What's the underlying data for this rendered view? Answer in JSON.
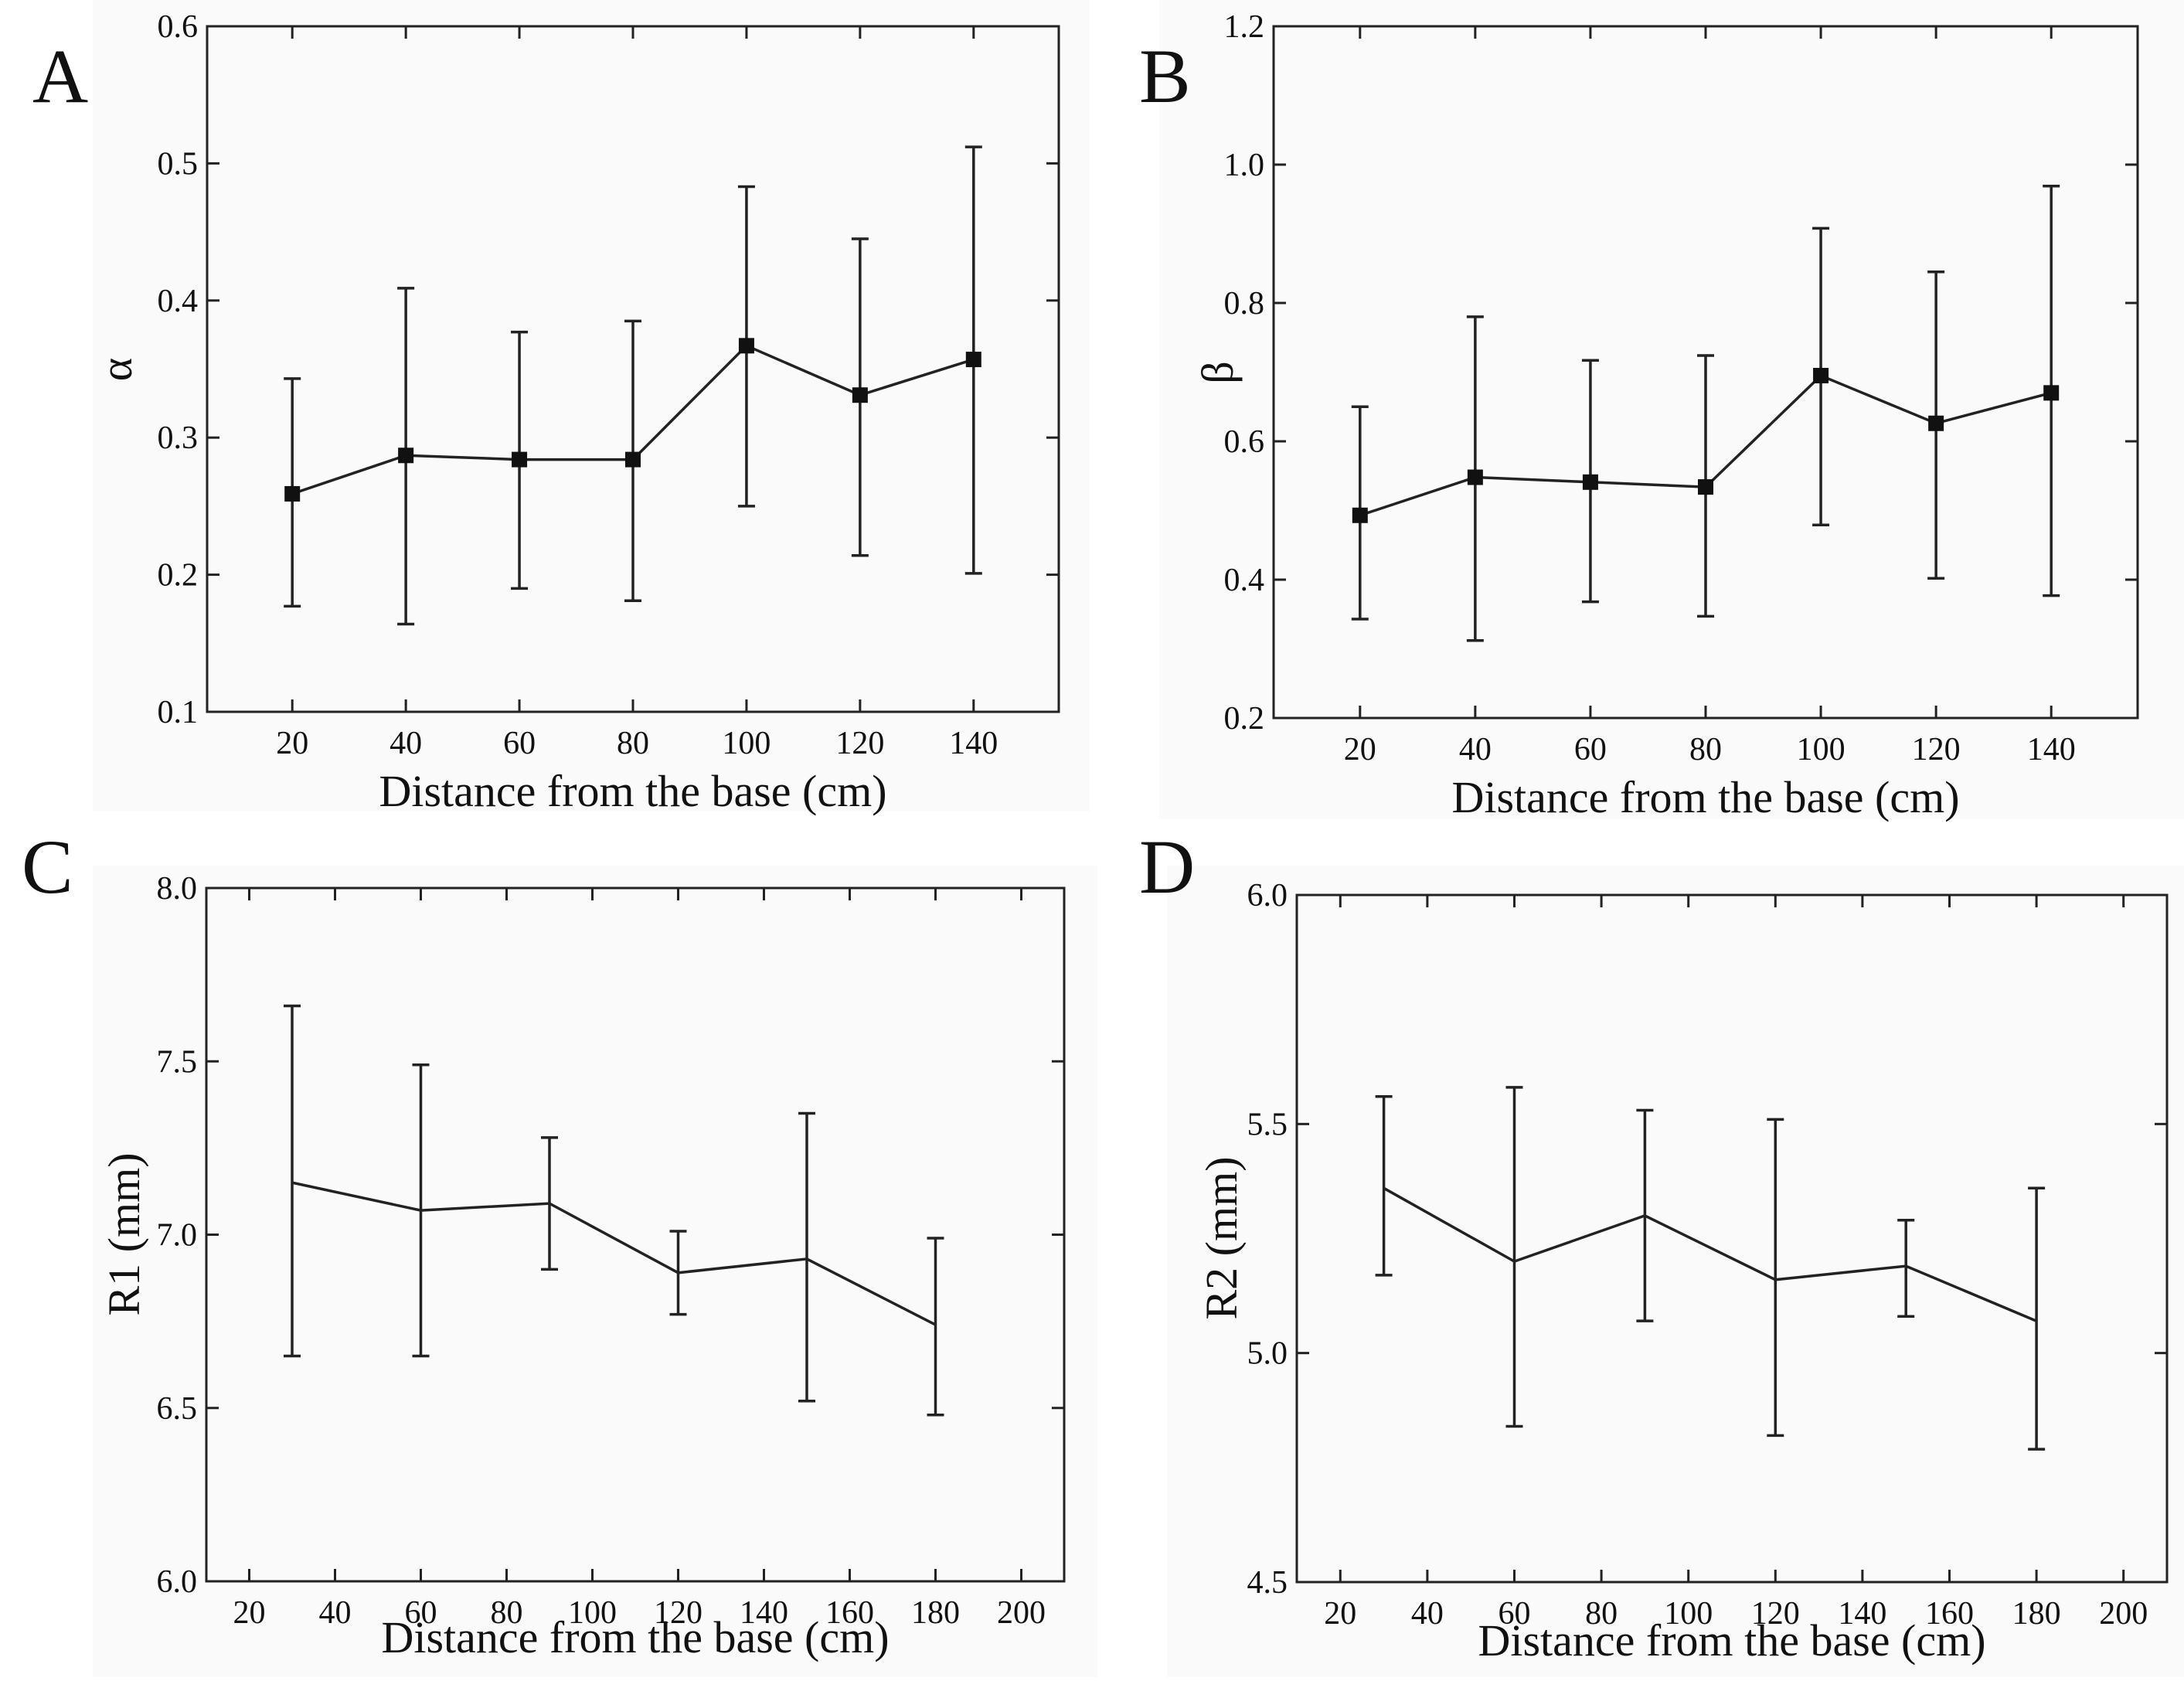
{
  "chart_data": [
    {
      "panel": "A",
      "type": "line",
      "xlabel": "Distance from the base (cm)",
      "ylabel": "α",
      "xlim": [
        5,
        155
      ],
      "ylim": [
        0.1,
        0.6
      ],
      "xticks": [
        "20",
        "40",
        "60",
        "80",
        "100",
        "120",
        "140"
      ],
      "yticks": [
        "0.1",
        "0.2",
        "0.3",
        "0.4",
        "0.5",
        "0.6"
      ],
      "markers": true,
      "series": [
        {
          "x": [
            20,
            40,
            60,
            80,
            100,
            120,
            140
          ],
          "y": [
            0.259,
            0.287,
            0.284,
            0.284,
            0.367,
            0.331,
            0.357
          ],
          "err_low": [
            0.177,
            0.164,
            0.19,
            0.181,
            0.25,
            0.214,
            0.201
          ],
          "err_high": [
            0.343,
            0.409,
            0.377,
            0.385,
            0.483,
            0.445,
            0.512
          ]
        }
      ]
    },
    {
      "panel": "B",
      "type": "line",
      "xlabel": "Distance from the base (cm)",
      "ylabel": "β",
      "xlim": [
        5,
        155
      ],
      "ylim": [
        0.2,
        1.2
      ],
      "xticks": [
        "20",
        "40",
        "60",
        "80",
        "100",
        "120",
        "140"
      ],
      "yticks": [
        "0.2",
        "0.4",
        "0.6",
        "0.8",
        "1.0",
        "1.2"
      ],
      "markers": true,
      "series": [
        {
          "x": [
            20,
            40,
            60,
            80,
            100,
            120,
            140
          ],
          "y": [
            0.493,
            0.548,
            0.541,
            0.534,
            0.695,
            0.626,
            0.67
          ],
          "err_low": [
            0.343,
            0.312,
            0.368,
            0.347,
            0.479,
            0.402,
            0.377
          ],
          "err_high": [
            0.65,
            0.78,
            0.717,
            0.724,
            0.908,
            0.845,
            0.969
          ]
        }
      ]
    },
    {
      "panel": "C",
      "type": "line",
      "xlabel": "Distance from the base (cm)",
      "ylabel": "R1 (mm)",
      "xlim": [
        10,
        210
      ],
      "ylim": [
        6.0,
        8.0
      ],
      "xticks": [
        "20",
        "40",
        "60",
        "80",
        "100",
        "120",
        "140",
        "160",
        "180",
        "200"
      ],
      "yticks": [
        "6.0",
        "6.5",
        "7.0",
        "7.5",
        "8.0"
      ],
      "markers": false,
      "series": [
        {
          "x": [
            30,
            60,
            90,
            120,
            150,
            180
          ],
          "y": [
            7.15,
            7.07,
            7.09,
            6.89,
            6.93,
            6.74
          ],
          "err_low": [
            6.65,
            6.65,
            6.9,
            6.77,
            6.52,
            6.48
          ],
          "err_high": [
            7.66,
            7.49,
            7.28,
            7.01,
            7.35,
            6.99
          ]
        }
      ]
    },
    {
      "panel": "D",
      "type": "line",
      "xlabel": "Distance from the base (cm)",
      "ylabel": "R2 (mm)",
      "xlim": [
        10,
        210
      ],
      "ylim": [
        4.5,
        6.0
      ],
      "xticks": [
        "20",
        "40",
        "60",
        "80",
        "100",
        "120",
        "140",
        "160",
        "180",
        "200"
      ],
      "yticks": [
        "4.5",
        "5.0",
        "5.5",
        "6.0"
      ],
      "markers": false,
      "series": [
        {
          "x": [
            30,
            60,
            90,
            120,
            150,
            180
          ],
          "y": [
            5.36,
            5.2,
            5.3,
            5.16,
            5.19,
            5.07
          ],
          "err_low": [
            5.17,
            4.84,
            5.07,
            4.82,
            5.08,
            4.79
          ],
          "err_high": [
            5.56,
            5.58,
            5.53,
            5.51,
            5.29,
            5.36
          ]
        }
      ]
    }
  ]
}
